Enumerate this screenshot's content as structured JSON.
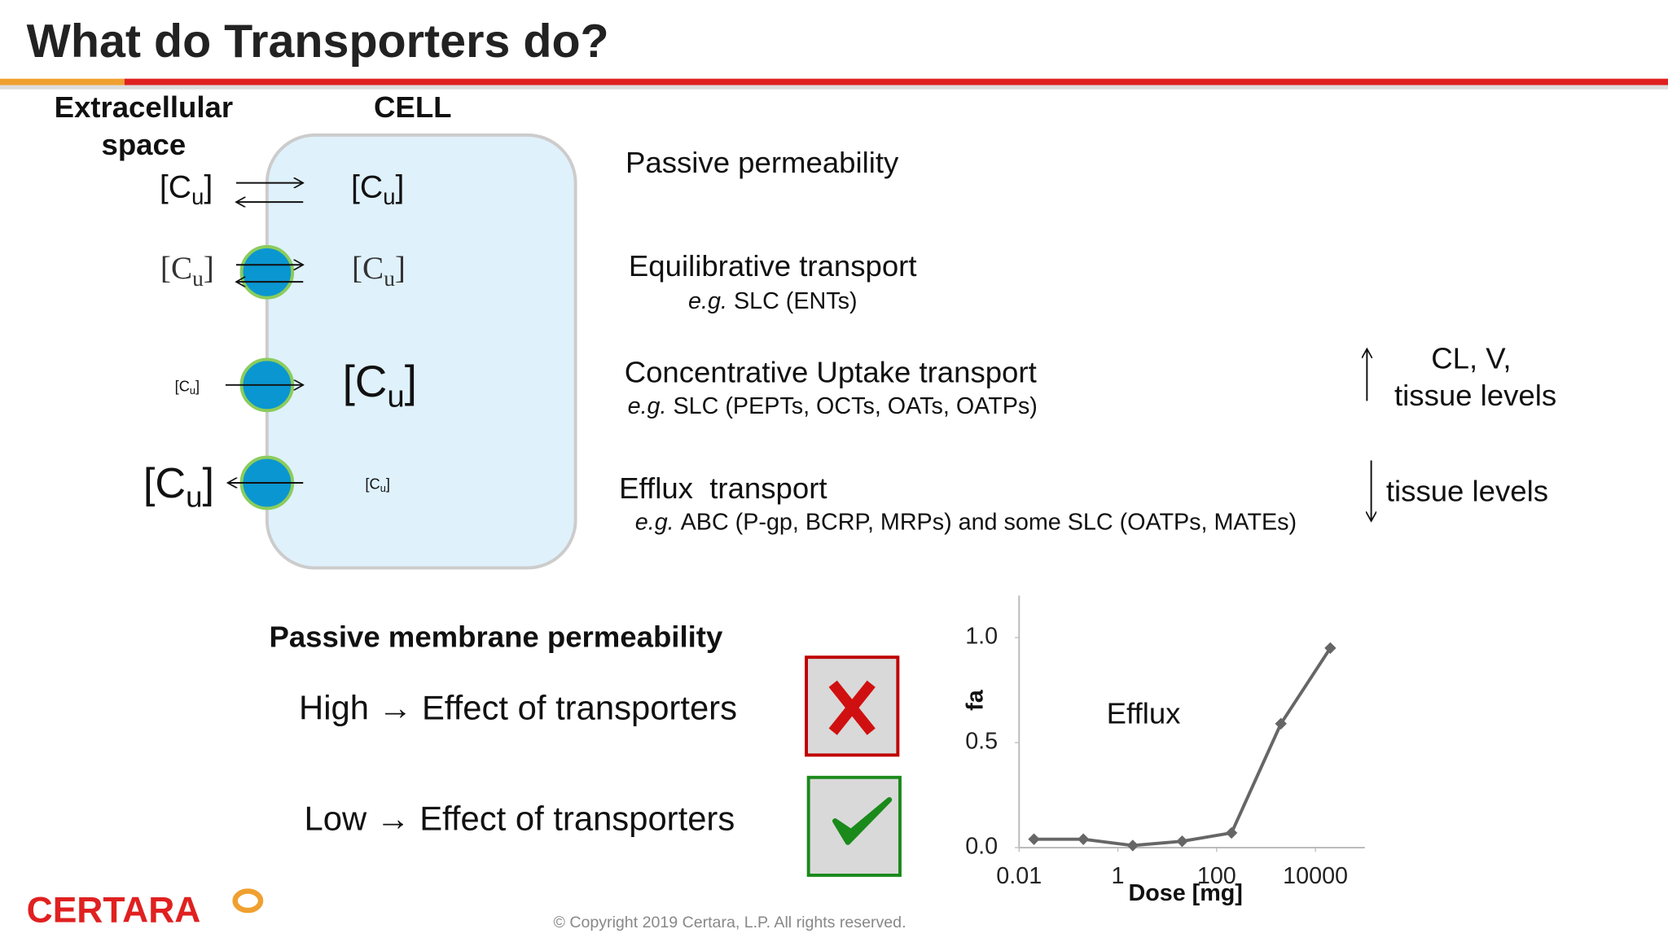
{
  "header": {
    "title": "What do Transporters do?"
  },
  "diagram": {
    "outside_label": [
      "Extracellular",
      "space"
    ],
    "cell_label": "CELL",
    "conc": {
      "open": "[C",
      "sub": "u",
      "close": "]"
    }
  },
  "mechanisms": [
    {
      "name": "Passive permeability"
    },
    {
      "name": "Equilibrative transport",
      "example_prefix": "e.g.",
      "example": "SLC (ENTs)"
    },
    {
      "name": "Concentrative Uptake transport",
      "example_prefix": "e.g.",
      "example": "SLC (PEPTs, OCTs, OATs, OATPs)"
    },
    {
      "name": "Efflux  transport",
      "example_prefix": "e.g.",
      "example": "ABC (P-gp, BCRP, MRPs) and some SLC (OATPs, MATEs)"
    }
  ],
  "effects": {
    "up": [
      "CL, V,",
      "tissue levels"
    ],
    "down": "tissue levels"
  },
  "permeability": {
    "title": "Passive membrane permeability",
    "high": "High → Effect of transporters",
    "low": "Low → Effect of transporters"
  },
  "chart": {
    "type": "line",
    "annotation": "Efflux",
    "xlabel": "Dose [mg]",
    "ylabel": "fa",
    "xscale": "log",
    "x": [
      0.02,
      0.2,
      2,
      20,
      200,
      2000,
      20000
    ],
    "values": [
      0.04,
      0.04,
      0.01,
      0.03,
      0.07,
      0.59,
      0.95
    ],
    "color": "#666666",
    "xlim": [
      0.01,
      100000
    ],
    "xticks": [
      0.01,
      1,
      100,
      10000
    ],
    "ylim": [
      0,
      1.2
    ],
    "yticks": [
      {
        "value": 1,
        "label": "1.0"
      },
      {
        "value": 0.5,
        "label": "0.5"
      },
      {
        "value": 0,
        "label": "0.0"
      }
    ]
  },
  "footer": {
    "logo": "CERTARA",
    "copyright": "© Copyright 2019 Certara, L.P.  All rights reserved."
  }
}
